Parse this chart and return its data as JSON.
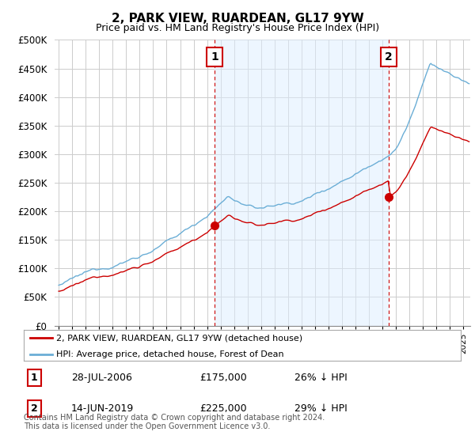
{
  "title": "2, PARK VIEW, RUARDEAN, GL17 9YW",
  "subtitle": "Price paid vs. HM Land Registry's House Price Index (HPI)",
  "ylabel_ticks": [
    "£0",
    "£50K",
    "£100K",
    "£150K",
    "£200K",
    "£250K",
    "£300K",
    "£350K",
    "£400K",
    "£450K",
    "£500K"
  ],
  "ytick_values": [
    0,
    50000,
    100000,
    150000,
    200000,
    250000,
    300000,
    350000,
    400000,
    450000,
    500000
  ],
  "ylim": [
    0,
    500000
  ],
  "xlim_start": 1994.7,
  "xlim_end": 2025.5,
  "hpi_color": "#6baed6",
  "hpi_fill_color": "#ddeeff",
  "price_color": "#cc0000",
  "vline_color": "#cc0000",
  "purchase1_date": 2006.55,
  "purchase1_price": 175000,
  "purchase1_label": "1",
  "purchase2_date": 2019.45,
  "purchase2_price": 225000,
  "purchase2_label": "2",
  "legend_label_red": "2, PARK VIEW, RUARDEAN, GL17 9YW (detached house)",
  "legend_label_blue": "HPI: Average price, detached house, Forest of Dean",
  "table_row1": [
    "1",
    "28-JUL-2006",
    "£175,000",
    "26% ↓ HPI"
  ],
  "table_row2": [
    "2",
    "14-JUN-2019",
    "£225,000",
    "29% ↓ HPI"
  ],
  "footnote": "Contains HM Land Registry data © Crown copyright and database right 2024.\nThis data is licensed under the Open Government Licence v3.0.",
  "background_color": "#ffffff",
  "grid_color": "#cccccc"
}
